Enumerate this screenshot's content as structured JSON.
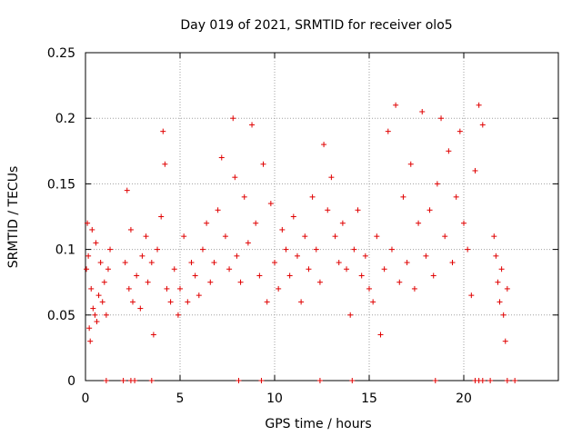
{
  "chart_data": {
    "type": "scatter",
    "title": "Day 019 of 2021, SRMTID for receiver olo5",
    "xlabel": "GPS time / hours",
    "ylabel": "SRMTID / TECUs",
    "xlim": [
      0,
      25
    ],
    "ylim": [
      0,
      0.25
    ],
    "xticks": [
      0,
      5,
      10,
      15,
      20
    ],
    "xtick_labels": [
      "0",
      "5",
      "10",
      "15",
      "20"
    ],
    "yticks": [
      0,
      0.05,
      0.1,
      0.15,
      0.2,
      0.25
    ],
    "ytick_labels": [
      "0",
      "0.05",
      "0.1",
      "0.15",
      "0.2",
      "0.25"
    ],
    "grid": true,
    "marker": "+",
    "color": "#e00000",
    "series": [
      {
        "name": "SRMTID",
        "points": [
          [
            0.05,
            0.085
          ],
          [
            0.1,
            0.12
          ],
          [
            0.15,
            0.095
          ],
          [
            0.2,
            0.04
          ],
          [
            0.25,
            0.03
          ],
          [
            0.3,
            0.07
          ],
          [
            0.35,
            0.115
          ],
          [
            0.4,
            0.055
          ],
          [
            0.5,
            0.05
          ],
          [
            0.55,
            0.105
          ],
          [
            0.6,
            0.045
          ],
          [
            0.7,
            0.065
          ],
          [
            0.8,
            0.09
          ],
          [
            0.9,
            0.06
          ],
          [
            1.0,
            0.075
          ],
          [
            1.1,
            0.05
          ],
          [
            1.2,
            0.085
          ],
          [
            1.3,
            0.1
          ],
          [
            2.1,
            0.09
          ],
          [
            2.2,
            0.145
          ],
          [
            2.3,
            0.07
          ],
          [
            2.4,
            0.115
          ],
          [
            2.5,
            0.06
          ],
          [
            2.7,
            0.08
          ],
          [
            2.9,
            0.055
          ],
          [
            3.0,
            0.095
          ],
          [
            3.2,
            0.11
          ],
          [
            3.3,
            0.075
          ],
          [
            3.5,
            0.09
          ],
          [
            3.6,
            0.035
          ],
          [
            3.8,
            0.1
          ],
          [
            4.0,
            0.125
          ],
          [
            4.1,
            0.19
          ],
          [
            4.2,
            0.165
          ],
          [
            4.3,
            0.07
          ],
          [
            4.5,
            0.06
          ],
          [
            4.7,
            0.085
          ],
          [
            4.9,
            0.05
          ],
          [
            5.0,
            0.07
          ],
          [
            5.2,
            0.11
          ],
          [
            5.4,
            0.06
          ],
          [
            5.6,
            0.09
          ],
          [
            5.8,
            0.08
          ],
          [
            6.0,
            0.065
          ],
          [
            6.2,
            0.1
          ],
          [
            6.4,
            0.12
          ],
          [
            6.6,
            0.075
          ],
          [
            6.8,
            0.09
          ],
          [
            7.0,
            0.13
          ],
          [
            7.2,
            0.17
          ],
          [
            7.4,
            0.11
          ],
          [
            7.6,
            0.085
          ],
          [
            7.8,
            0.2
          ],
          [
            7.9,
            0.155
          ],
          [
            8.0,
            0.095
          ],
          [
            8.2,
            0.075
          ],
          [
            8.4,
            0.14
          ],
          [
            8.6,
            0.105
          ],
          [
            8.8,
            0.195
          ],
          [
            9.0,
            0.12
          ],
          [
            9.2,
            0.08
          ],
          [
            9.4,
            0.165
          ],
          [
            9.6,
            0.06
          ],
          [
            9.8,
            0.135
          ],
          [
            10.0,
            0.09
          ],
          [
            10.2,
            0.07
          ],
          [
            10.4,
            0.115
          ],
          [
            10.6,
            0.1
          ],
          [
            10.8,
            0.08
          ],
          [
            11.0,
            0.125
          ],
          [
            11.2,
            0.095
          ],
          [
            11.4,
            0.06
          ],
          [
            11.6,
            0.11
          ],
          [
            11.8,
            0.085
          ],
          [
            12.0,
            0.14
          ],
          [
            12.2,
            0.1
          ],
          [
            12.4,
            0.075
          ],
          [
            12.6,
            0.18
          ],
          [
            12.8,
            0.13
          ],
          [
            13.0,
            0.155
          ],
          [
            13.2,
            0.11
          ],
          [
            13.4,
            0.09
          ],
          [
            13.6,
            0.12
          ],
          [
            13.8,
            0.085
          ],
          [
            14.0,
            0.05
          ],
          [
            14.2,
            0.1
          ],
          [
            14.4,
            0.13
          ],
          [
            14.6,
            0.08
          ],
          [
            14.8,
            0.095
          ],
          [
            15.0,
            0.07
          ],
          [
            15.2,
            0.06
          ],
          [
            15.4,
            0.11
          ],
          [
            15.6,
            0.035
          ],
          [
            15.8,
            0.085
          ],
          [
            16.0,
            0.19
          ],
          [
            16.2,
            0.1
          ],
          [
            16.4,
            0.21
          ],
          [
            16.6,
            0.075
          ],
          [
            16.8,
            0.14
          ],
          [
            17.0,
            0.09
          ],
          [
            17.2,
            0.165
          ],
          [
            17.4,
            0.07
          ],
          [
            17.6,
            0.12
          ],
          [
            17.8,
            0.205
          ],
          [
            18.0,
            0.095
          ],
          [
            18.2,
            0.13
          ],
          [
            18.4,
            0.08
          ],
          [
            18.6,
            0.15
          ],
          [
            18.8,
            0.2
          ],
          [
            19.0,
            0.11
          ],
          [
            19.2,
            0.175
          ],
          [
            19.4,
            0.09
          ],
          [
            19.6,
            0.14
          ],
          [
            19.8,
            0.19
          ],
          [
            20.0,
            0.12
          ],
          [
            20.2,
            0.1
          ],
          [
            20.4,
            0.065
          ],
          [
            20.6,
            0.16
          ],
          [
            20.8,
            0.21
          ],
          [
            21.0,
            0.195
          ],
          [
            21.6,
            0.11
          ],
          [
            21.7,
            0.095
          ],
          [
            21.8,
            0.075
          ],
          [
            21.9,
            0.06
          ],
          [
            22.0,
            0.085
          ],
          [
            22.1,
            0.05
          ],
          [
            22.2,
            0.03
          ],
          [
            22.3,
            0.07
          ],
          [
            1.1,
            0.0
          ],
          [
            2.0,
            0.0
          ],
          [
            2.4,
            0.0
          ],
          [
            2.6,
            0.0
          ],
          [
            3.5,
            0.0
          ],
          [
            8.1,
            0.0
          ],
          [
            9.3,
            0.0
          ],
          [
            12.4,
            0.0
          ],
          [
            14.1,
            0.0
          ],
          [
            18.5,
            0.0
          ],
          [
            20.6,
            0.0
          ],
          [
            20.8,
            0.0
          ],
          [
            21.0,
            0.0
          ],
          [
            21.4,
            0.0
          ],
          [
            22.3,
            0.0
          ],
          [
            22.7,
            0.0
          ]
        ]
      }
    ]
  }
}
